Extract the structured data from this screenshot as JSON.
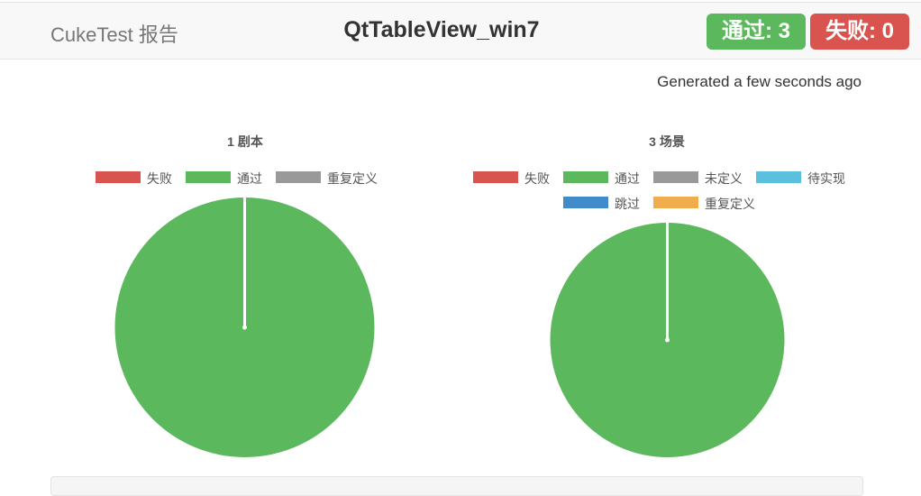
{
  "header": {
    "brand": "CukeTest 报告",
    "title": "QtTableView_win7",
    "passed_badge": "通过: 3",
    "failed_badge": "失败: 0"
  },
  "generated": "Generated a few seconds ago",
  "legend_colors": {
    "失败": "#d9534f",
    "通过": "#5cb85c",
    "重复定义": "#999999",
    "未定义": "#999999",
    "待实现": "#5bc0de",
    "跳过": "#428bca"
  },
  "chart_data": [
    {
      "type": "pie",
      "title": "1 剧本",
      "legend": [
        "失败",
        "通过",
        "重复定义"
      ],
      "values": [
        0,
        1,
        0
      ],
      "colors": [
        "#d9534f",
        "#5cb85c",
        "#999999"
      ],
      "legend_position": "top"
    },
    {
      "type": "pie",
      "title": "3 场景",
      "legend": [
        "失败",
        "通过",
        "未定义",
        "待实现",
        "跳过",
        "重复定义"
      ],
      "values": [
        0,
        3,
        0,
        0,
        0,
        0
      ],
      "colors": [
        "#d9534f",
        "#5cb85c",
        "#999999",
        "#5bc0de",
        "#428bca",
        "#f0ad4e"
      ],
      "legend_position": "top"
    }
  ]
}
